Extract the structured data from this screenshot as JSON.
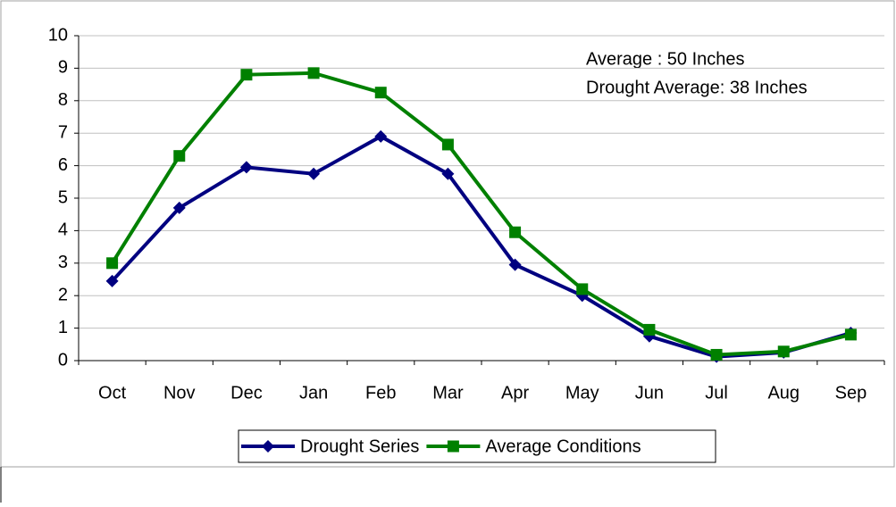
{
  "chart_data": {
    "type": "line",
    "annotations": [
      "Average : 50 Inches",
      "Drought Average: 38 Inches"
    ],
    "categories": [
      "Oct",
      "Nov",
      "Dec",
      "Jan",
      "Feb",
      "Mar",
      "Apr",
      "May",
      "Jun",
      "Jul",
      "Aug",
      "Sep"
    ],
    "series": [
      {
        "name": "Drought Series",
        "color": "#000080",
        "marker": "diamond",
        "values": [
          2.45,
          4.7,
          5.95,
          5.75,
          6.9,
          5.75,
          2.95,
          2.0,
          0.75,
          0.12,
          0.25,
          0.85
        ]
      },
      {
        "name": "Average Conditions",
        "color": "#008000",
        "marker": "square",
        "values": [
          3.0,
          6.3,
          8.8,
          8.85,
          8.25,
          6.65,
          3.95,
          2.2,
          0.95,
          0.18,
          0.28,
          0.8
        ]
      }
    ],
    "ylim": [
      0,
      10
    ],
    "yticks": [
      0,
      1,
      2,
      3,
      4,
      5,
      6,
      7,
      8,
      9,
      10
    ],
    "grid": true,
    "legend": "bottom"
  }
}
